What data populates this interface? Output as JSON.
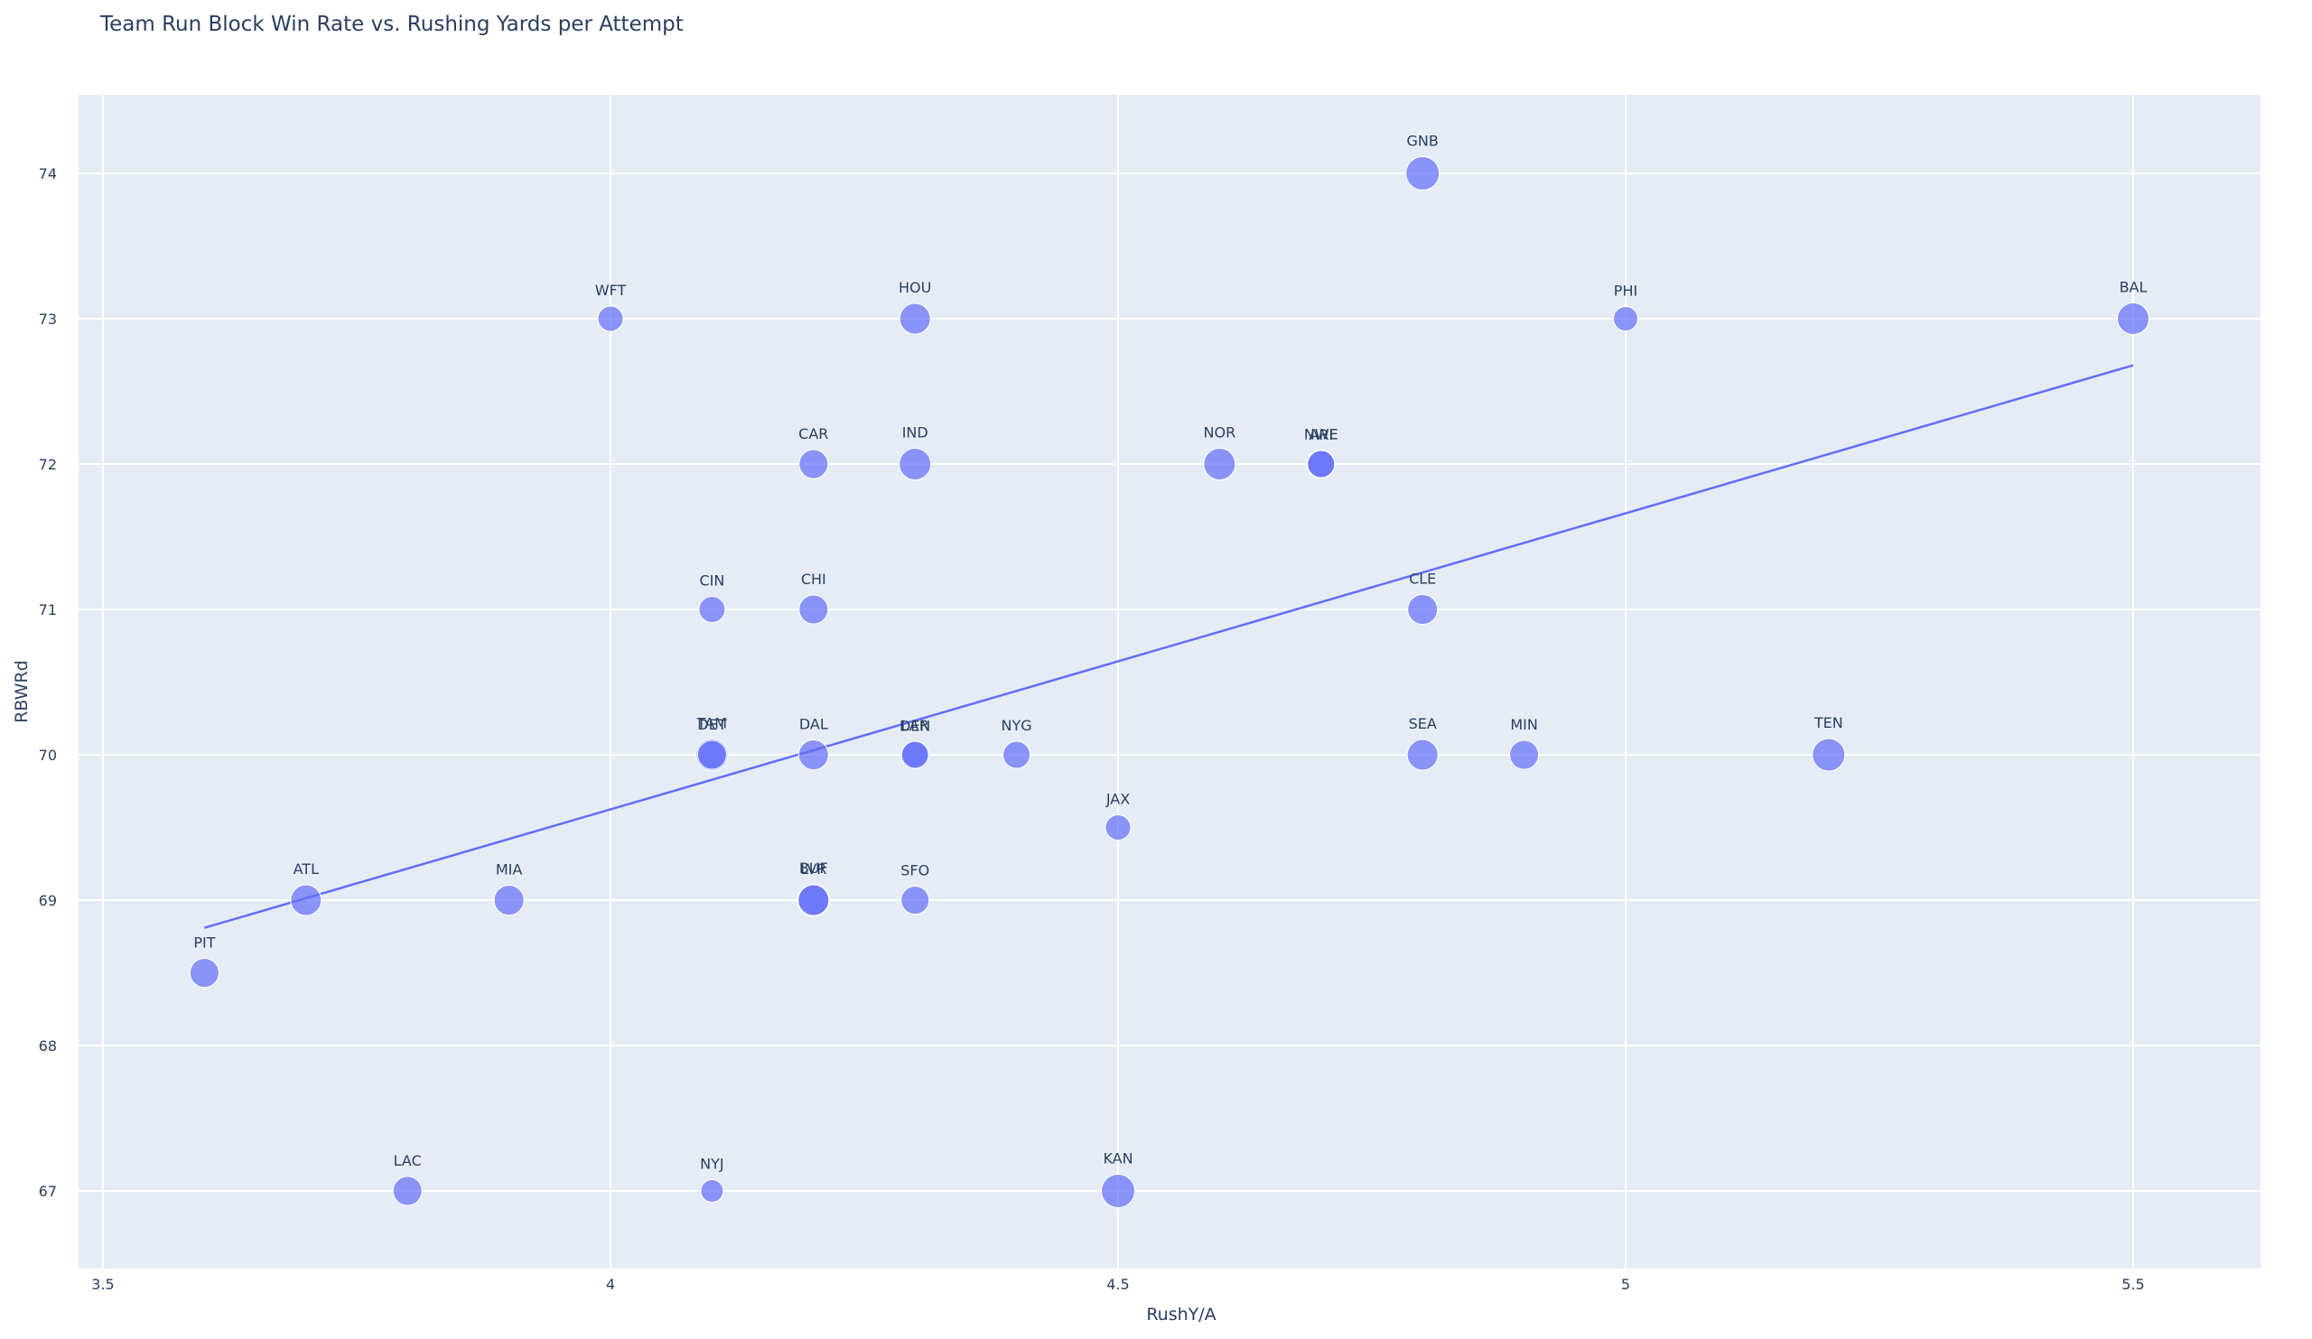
{
  "chart_data": {
    "type": "scatter",
    "title": "Team Run Block Win Rate vs. Rushing Yards per Attempt",
    "xlabel": "RushY/A",
    "ylabel": "RBWRd",
    "xlim": [
      3.46,
      5.63
    ],
    "ylim": [
      66.48,
      74.53
    ],
    "x_ticks": [
      3.5,
      4,
      4.5,
      5,
      5.5
    ],
    "x_tick_labels": [
      "3.5",
      "4",
      "4.5",
      "5",
      "5.5"
    ],
    "y_ticks": [
      67,
      68,
      69,
      70,
      71,
      72,
      73,
      74
    ],
    "y_tick_labels": [
      "67",
      "68",
      "69",
      "70",
      "71",
      "72",
      "73",
      "74"
    ],
    "grid": true,
    "legend": false,
    "marker_color": "#636efa",
    "marker_opacity": 0.7,
    "plot_bgcolor": "#e5ecf6",
    "points": [
      {
        "team": "GNB",
        "x": 4.8,
        "y": 74,
        "size": 37
      },
      {
        "team": "WFT",
        "x": 4.0,
        "y": 73,
        "size": 28
      },
      {
        "team": "HOU",
        "x": 4.3,
        "y": 73,
        "size": 34
      },
      {
        "team": "PHI",
        "x": 5.0,
        "y": 73,
        "size": 27
      },
      {
        "team": "BAL",
        "x": 5.5,
        "y": 73,
        "size": 35
      },
      {
        "team": "CAR",
        "x": 4.2,
        "y": 72,
        "size": 32
      },
      {
        "team": "IND",
        "x": 4.3,
        "y": 72,
        "size": 35
      },
      {
        "team": "NOR",
        "x": 4.6,
        "y": 72,
        "size": 35
      },
      {
        "team": "NWE",
        "x": 4.7,
        "y": 72,
        "size": 31
      },
      {
        "team": "ARI",
        "x": 4.7,
        "y": 72,
        "size": 30
      },
      {
        "team": "CIN",
        "x": 4.1,
        "y": 71,
        "size": 29
      },
      {
        "team": "CHI",
        "x": 4.2,
        "y": 71,
        "size": 32
      },
      {
        "team": "CLE",
        "x": 4.8,
        "y": 71,
        "size": 33
      },
      {
        "team": "TAM",
        "x": 4.1,
        "y": 70,
        "size": 35
      },
      {
        "team": "DET",
        "x": 4.1,
        "y": 70,
        "size": 32
      },
      {
        "team": "DAL",
        "x": 4.2,
        "y": 70,
        "size": 33
      },
      {
        "team": "DEN",
        "x": 4.3,
        "y": 70,
        "size": 29
      },
      {
        "team": "LAR",
        "x": 4.3,
        "y": 70,
        "size": 30
      },
      {
        "team": "NYG",
        "x": 4.4,
        "y": 70,
        "size": 30
      },
      {
        "team": "SEA",
        "x": 4.8,
        "y": 70,
        "size": 34
      },
      {
        "team": "MIN",
        "x": 4.9,
        "y": 70,
        "size": 32
      },
      {
        "team": "TEN",
        "x": 5.2,
        "y": 70,
        "size": 36
      },
      {
        "team": "JAX",
        "x": 4.5,
        "y": 69.5,
        "size": 28
      },
      {
        "team": "ATL",
        "x": 3.7,
        "y": 69,
        "size": 34
      },
      {
        "team": "MIA",
        "x": 3.9,
        "y": 69,
        "size": 33
      },
      {
        "team": "BUF",
        "x": 4.2,
        "y": 69,
        "size": 36
      },
      {
        "team": "LVR",
        "x": 4.2,
        "y": 69,
        "size": 34
      },
      {
        "team": "SFO",
        "x": 4.3,
        "y": 69,
        "size": 31
      },
      {
        "team": "PIT",
        "x": 3.6,
        "y": 68.5,
        "size": 32
      },
      {
        "team": "LAC",
        "x": 3.8,
        "y": 67,
        "size": 32
      },
      {
        "team": "NYJ",
        "x": 4.1,
        "y": 67,
        "size": 25
      },
      {
        "team": "KAN",
        "x": 4.5,
        "y": 67,
        "size": 37
      }
    ],
    "trendline": {
      "type": "linear OLS",
      "color": "#636efa",
      "x": [
        3.6,
        5.5
      ],
      "y": [
        68.81,
        72.68
      ]
    }
  }
}
